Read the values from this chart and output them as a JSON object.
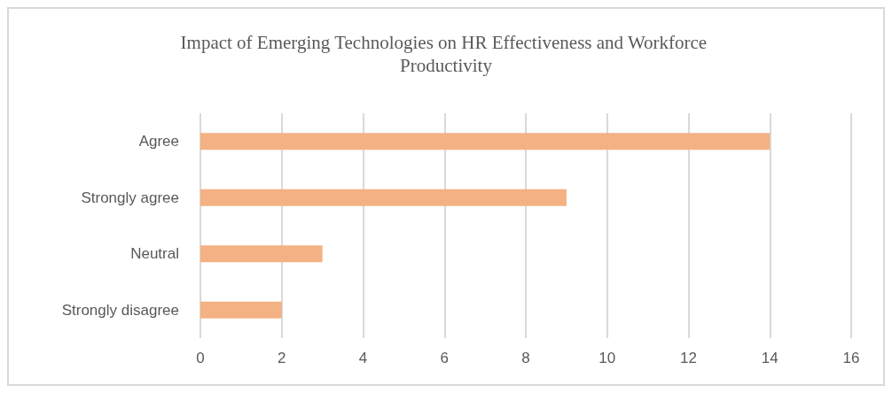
{
  "chart_data": {
    "type": "bar",
    "orientation": "horizontal",
    "title": "Impact of Emerging Technologies on HR Effectiveness and Workforce Productivity",
    "categories": [
      "Agree",
      "Strongly agree",
      "Neutral",
      "Strongly disagree"
    ],
    "values": [
      14,
      9,
      3,
      2
    ],
    "color": "#f4b183",
    "xlim": [
      0,
      16
    ],
    "xticks": [
      0,
      2,
      4,
      6,
      8,
      10,
      12,
      14,
      16
    ],
    "grid": "x"
  }
}
